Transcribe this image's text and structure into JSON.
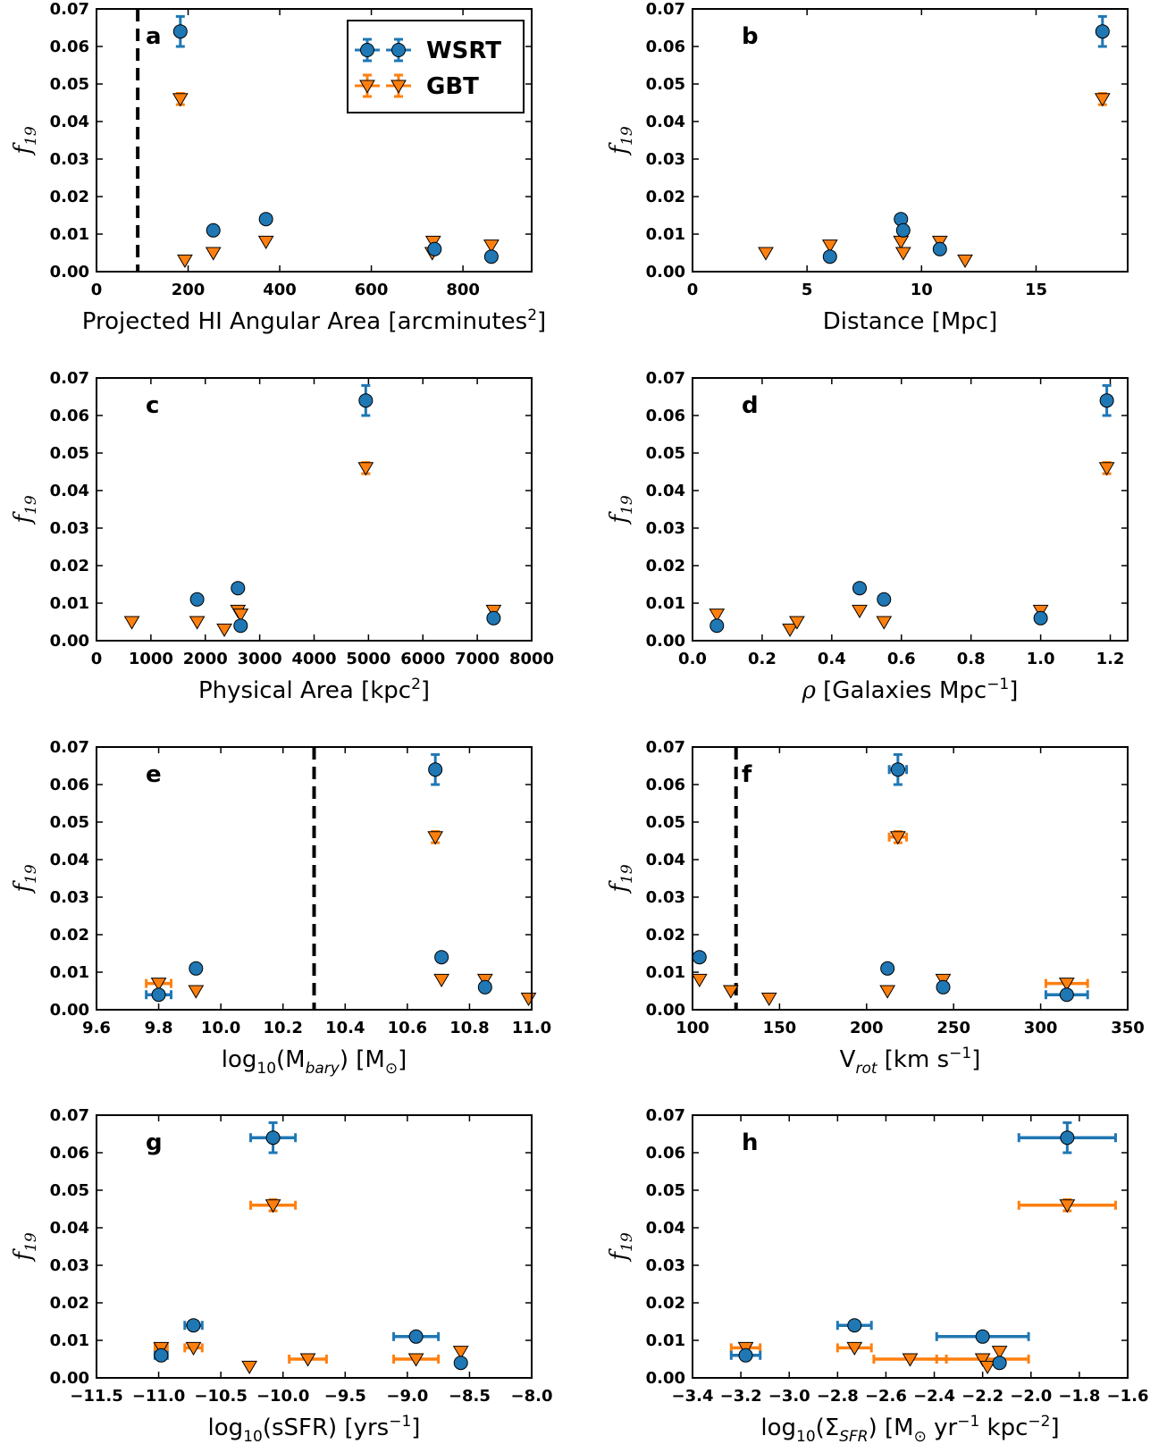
{
  "series_styles": {
    "WSRT": {
      "color": "#1f77b4",
      "marker": "circle"
    },
    "GBT": {
      "color": "#ff7f0e",
      "marker": "triangle-down"
    }
  },
  "legend": {
    "entries": [
      "WSRT",
      "GBT"
    ],
    "location": "upper-right",
    "panel": "a"
  },
  "chart_data": [
    {
      "panel": "a",
      "type": "scatter",
      "ylabel": "f19",
      "xlabel": "Projected HI Angular Area [arcminutes2]",
      "xlim": [
        0,
        950
      ],
      "ylim": [
        0,
        0.07
      ],
      "xticks": [
        0,
        200,
        400,
        600,
        800
      ],
      "xtick_labels": [
        "0",
        "200",
        "400",
        "600",
        "800"
      ],
      "vline": 90,
      "series": [
        {
          "name": "WSRT",
          "points": [
            {
              "x": 183,
              "y": 0.064,
              "yerr": 0.004
            },
            {
              "x": 255,
              "y": 0.011
            },
            {
              "x": 370,
              "y": 0.014
            },
            {
              "x": 738,
              "y": 0.006
            },
            {
              "x": 862,
              "y": 0.004
            }
          ]
        },
        {
          "name": "GBT",
          "points": [
            {
              "x": 183,
              "y": 0.046,
              "yerr": 0.0015
            },
            {
              "x": 193,
              "y": 0.003
            },
            {
              "x": 255,
              "y": 0.005
            },
            {
              "x": 370,
              "y": 0.008
            },
            {
              "x": 735,
              "y": 0.008
            },
            {
              "x": 733,
              "y": 0.005
            },
            {
              "x": 862,
              "y": 0.007
            }
          ]
        }
      ]
    },
    {
      "panel": "b",
      "type": "scatter",
      "ylabel": "f19",
      "xlabel": "Distance [Mpc]",
      "xlim": [
        0,
        19
      ],
      "ylim": [
        0,
        0.07
      ],
      "xticks": [
        0,
        5,
        10,
        15
      ],
      "xtick_labels": [
        "0",
        "5",
        "10",
        "15"
      ],
      "series": [
        {
          "name": "WSRT",
          "points": [
            {
              "x": 17.9,
              "y": 0.064,
              "yerr": 0.004
            },
            {
              "x": 9.1,
              "y": 0.014
            },
            {
              "x": 9.2,
              "y": 0.011
            },
            {
              "x": 10.8,
              "y": 0.006
            },
            {
              "x": 6.0,
              "y": 0.004
            }
          ]
        },
        {
          "name": "GBT",
          "points": [
            {
              "x": 17.9,
              "y": 0.046,
              "yerr": 0.0015
            },
            {
              "x": 3.2,
              "y": 0.005
            },
            {
              "x": 6.0,
              "y": 0.007
            },
            {
              "x": 9.1,
              "y": 0.008
            },
            {
              "x": 9.2,
              "y": 0.005
            },
            {
              "x": 10.8,
              "y": 0.008
            },
            {
              "x": 11.9,
              "y": 0.003
            }
          ]
        }
      ]
    },
    {
      "panel": "c",
      "type": "scatter",
      "ylabel": "f19",
      "xlabel": "Physical Area [kpc2]",
      "xlim": [
        0,
        8000
      ],
      "ylim": [
        0,
        0.07
      ],
      "xticks": [
        0,
        1000,
        2000,
        3000,
        4000,
        5000,
        6000,
        7000,
        8000
      ],
      "xtick_labels": [
        "0",
        "1000",
        "2000",
        "3000",
        "4000",
        "5000",
        "6000",
        "7000",
        "8000"
      ],
      "series": [
        {
          "name": "WSRT",
          "points": [
            {
              "x": 4950,
              "y": 0.064,
              "yerr": 0.004
            },
            {
              "x": 1850,
              "y": 0.011
            },
            {
              "x": 2600,
              "y": 0.014
            },
            {
              "x": 2650,
              "y": 0.004
            },
            {
              "x": 7300,
              "y": 0.006
            }
          ]
        },
        {
          "name": "GBT",
          "points": [
            {
              "x": 4950,
              "y": 0.046,
              "yerr": 0.0015
            },
            {
              "x": 650,
              "y": 0.005
            },
            {
              "x": 1850,
              "y": 0.005
            },
            {
              "x": 2350,
              "y": 0.003
            },
            {
              "x": 2600,
              "y": 0.008
            },
            {
              "x": 2650,
              "y": 0.007
            },
            {
              "x": 7300,
              "y": 0.008
            }
          ]
        }
      ]
    },
    {
      "panel": "d",
      "type": "scatter",
      "ylabel": "f19",
      "xlabel": "ρ [Galaxies Mpc−1]",
      "xlim": [
        0,
        1.25
      ],
      "ylim": [
        0,
        0.07
      ],
      "xticks": [
        0,
        0.2,
        0.4,
        0.6,
        0.8,
        1.0,
        1.2
      ],
      "xtick_labels": [
        "0.0",
        "0.2",
        "0.4",
        "0.6",
        "0.8",
        "1.0",
        "1.2"
      ],
      "series": [
        {
          "name": "WSRT",
          "points": [
            {
              "x": 1.19,
              "y": 0.064,
              "yerr": 0.004
            },
            {
              "x": 0.48,
              "y": 0.014
            },
            {
              "x": 0.55,
              "y": 0.011
            },
            {
              "x": 1.0,
              "y": 0.006
            },
            {
              "x": 0.07,
              "y": 0.004
            }
          ]
        },
        {
          "name": "GBT",
          "points": [
            {
              "x": 1.19,
              "y": 0.046,
              "yerr": 0.0015
            },
            {
              "x": 0.07,
              "y": 0.007
            },
            {
              "x": 0.28,
              "y": 0.003
            },
            {
              "x": 0.3,
              "y": 0.005
            },
            {
              "x": 0.48,
              "y": 0.008
            },
            {
              "x": 0.55,
              "y": 0.005
            },
            {
              "x": 1.0,
              "y": 0.008
            }
          ]
        }
      ]
    },
    {
      "panel": "e",
      "type": "scatter",
      "ylabel": "f19",
      "xlabel": "log10(Mbary) [M⊙]",
      "xlim": [
        9.6,
        11.0
      ],
      "ylim": [
        0,
        0.07
      ],
      "xticks": [
        9.6,
        9.8,
        10.0,
        10.2,
        10.4,
        10.6,
        10.8,
        11.0
      ],
      "xtick_labels": [
        "9.6",
        "9.8",
        "10.0",
        "10.2",
        "10.4",
        "10.6",
        "10.8",
        "11.0"
      ],
      "vline": 10.3,
      "series": [
        {
          "name": "WSRT",
          "points": [
            {
              "x": 10.69,
              "y": 0.064,
              "yerr": 0.004
            },
            {
              "x": 10.71,
              "y": 0.014
            },
            {
              "x": 9.92,
              "y": 0.011
            },
            {
              "x": 10.85,
              "y": 0.006
            },
            {
              "x": 9.8,
              "y": 0.004,
              "xerr": 0.04
            }
          ]
        },
        {
          "name": "GBT",
          "points": [
            {
              "x": 10.69,
              "y": 0.046,
              "yerr": 0.0015
            },
            {
              "x": 9.8,
              "y": 0.007,
              "xerr": 0.04
            },
            {
              "x": 9.92,
              "y": 0.005
            },
            {
              "x": 10.71,
              "y": 0.008
            },
            {
              "x": 10.85,
              "y": 0.008
            },
            {
              "x": 10.99,
              "y": 0.003
            }
          ]
        }
      ]
    },
    {
      "panel": "f",
      "type": "scatter",
      "ylabel": "f19",
      "xlabel": "Vrot [km s−1]",
      "xlim": [
        100,
        350
      ],
      "ylim": [
        0,
        0.07
      ],
      "xticks": [
        100,
        150,
        200,
        250,
        300,
        350
      ],
      "xtick_labels": [
        "100",
        "150",
        "200",
        "250",
        "300",
        "350"
      ],
      "vline": 125,
      "series": [
        {
          "name": "WSRT",
          "points": [
            {
              "x": 218,
              "y": 0.064,
              "yerr": 0.004,
              "xerr": 5
            },
            {
              "x": 104,
              "y": 0.014
            },
            {
              "x": 212,
              "y": 0.011
            },
            {
              "x": 244,
              "y": 0.006
            },
            {
              "x": 315,
              "y": 0.004,
              "xerr": 12
            }
          ]
        },
        {
          "name": "GBT",
          "points": [
            {
              "x": 218,
              "y": 0.046,
              "yerr": 0.0015,
              "xerr": 5
            },
            {
              "x": 104,
              "y": 0.008
            },
            {
              "x": 122,
              "y": 0.005
            },
            {
              "x": 144,
              "y": 0.003
            },
            {
              "x": 212,
              "y": 0.005
            },
            {
              "x": 244,
              "y": 0.008
            },
            {
              "x": 315,
              "y": 0.007,
              "xerr": 12
            }
          ]
        }
      ]
    },
    {
      "panel": "g",
      "type": "scatter",
      "ylabel": "f19",
      "xlabel": "log10(sSFR) [yrs−1]",
      "xlim": [
        -11.5,
        -8.0
      ],
      "ylim": [
        0,
        0.07
      ],
      "xticks": [
        -11.5,
        -11.0,
        -10.5,
        -10.0,
        -9.5,
        -9.0,
        -8.5,
        -8.0
      ],
      "xtick_labels": [
        "−11.5",
        "−11.0",
        "−10.5",
        "−10.0",
        "−9.5",
        "−9.0",
        "−8.5",
        "−8.0"
      ],
      "series": [
        {
          "name": "WSRT",
          "points": [
            {
              "x": -10.08,
              "y": 0.064,
              "yerr": 0.004,
              "xerr": 0.18
            },
            {
              "x": -10.72,
              "y": 0.014,
              "xerr": 0.07
            },
            {
              "x": -8.93,
              "y": 0.011,
              "xerr": 0.18
            },
            {
              "x": -10.98,
              "y": 0.006,
              "xerr": 0.05
            },
            {
              "x": -8.57,
              "y": 0.004
            }
          ]
        },
        {
          "name": "GBT",
          "points": [
            {
              "x": -10.08,
              "y": 0.046,
              "yerr": 0.0015,
              "xerr": 0.18
            },
            {
              "x": -10.98,
              "y": 0.008,
              "xerr": 0.05
            },
            {
              "x": -10.72,
              "y": 0.008,
              "xerr": 0.07
            },
            {
              "x": -10.27,
              "y": 0.003
            },
            {
              "x": -9.8,
              "y": 0.005,
              "xerr": 0.15
            },
            {
              "x": -8.93,
              "y": 0.005,
              "xerr": 0.18
            },
            {
              "x": -8.57,
              "y": 0.007
            }
          ]
        }
      ]
    },
    {
      "panel": "h",
      "type": "scatter",
      "ylabel": "f19",
      "xlabel": "log10(ΣSFR) [M⊙ yr−1 kpc−2]",
      "xlim": [
        -3.4,
        -1.6
      ],
      "ylim": [
        0,
        0.07
      ],
      "xticks": [
        -3.4,
        -3.2,
        -3.0,
        -2.8,
        -2.6,
        -2.4,
        -2.2,
        -2.0,
        -1.8,
        -1.6
      ],
      "xtick_labels": [
        "−3.4",
        "−3.2",
        "−3.0",
        "−2.8",
        "−2.6",
        "−2.4",
        "−2.2",
        "−2.0",
        "−1.8",
        "−1.6"
      ],
      "series": [
        {
          "name": "WSRT",
          "points": [
            {
              "x": -1.85,
              "y": 0.064,
              "yerr": 0.004,
              "xerr": 0.2
            },
            {
              "x": -2.73,
              "y": 0.014,
              "xerr": 0.07
            },
            {
              "x": -2.2,
              "y": 0.011,
              "xerr": 0.19
            },
            {
              "x": -3.18,
              "y": 0.006,
              "xerr": 0.06
            },
            {
              "x": -2.13,
              "y": 0.004
            }
          ]
        },
        {
          "name": "GBT",
          "points": [
            {
              "x": -1.85,
              "y": 0.046,
              "yerr": 0.0015,
              "xerr": 0.2
            },
            {
              "x": -3.18,
              "y": 0.008,
              "xerr": 0.06
            },
            {
              "x": -2.73,
              "y": 0.008,
              "xerr": 0.07
            },
            {
              "x": -2.5,
              "y": 0.005,
              "xerr": 0.15
            },
            {
              "x": -2.2,
              "y": 0.005,
              "xerr": 0.19
            },
            {
              "x": -2.18,
              "y": 0.003
            },
            {
              "x": -2.13,
              "y": 0.007
            }
          ]
        }
      ]
    }
  ],
  "yticks": [
    0.0,
    0.01,
    0.02,
    0.03,
    0.04,
    0.05,
    0.06,
    0.07
  ],
  "ytick_labels": [
    "0.00",
    "0.01",
    "0.02",
    "0.03",
    "0.04",
    "0.05",
    "0.06",
    "0.07"
  ]
}
